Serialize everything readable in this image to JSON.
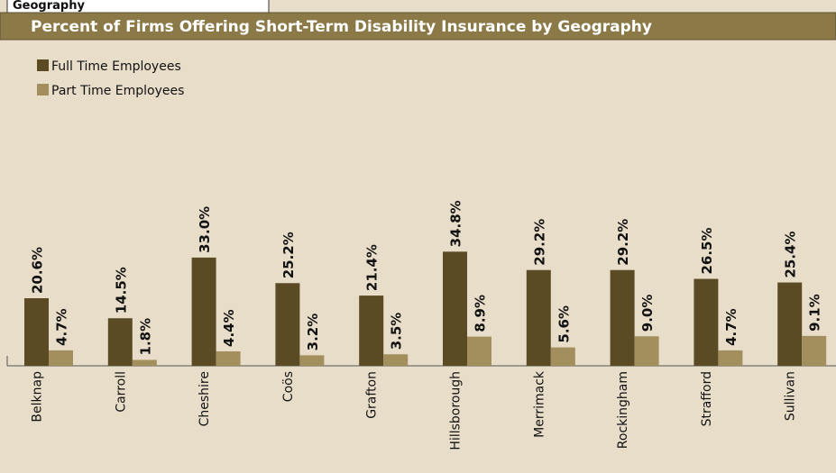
{
  "header": {
    "box": "Geography"
  },
  "chart_data": {
    "type": "bar",
    "title": "Percent of Firms Offering Short-Term Disability Insurance by Geography",
    "categories": [
      "Belknap",
      "Carroll",
      "Cheshire",
      "Coös",
      "Grafton",
      "Hillsborough",
      "Merrimack",
      "Rockingham",
      "Strafford",
      "Sullivan"
    ],
    "series": [
      {
        "name": "Full Time Employees",
        "color": "#5b4b24",
        "values": [
          20.6,
          14.5,
          33.0,
          25.2,
          21.4,
          34.8,
          29.2,
          29.2,
          26.5,
          25.4
        ],
        "value_labels": [
          "20.6%",
          "14.5%",
          "33.0%",
          "25.2%",
          "21.4%",
          "34.8%",
          "29.2%",
          "29.2%",
          "26.5%",
          "25.4%"
        ]
      },
      {
        "name": "Part Time Employees",
        "color": "#a38f5e",
        "values": [
          4.7,
          1.8,
          4.4,
          3.2,
          3.5,
          8.9,
          5.6,
          9.0,
          4.7,
          9.1
        ],
        "value_labels": [
          "4.7%",
          "1.8%",
          "4.4%",
          "3.2%",
          "3.5%",
          "8.9%",
          "5.6%",
          "9.0%",
          "4.7%",
          "9.1%"
        ]
      }
    ]
  }
}
